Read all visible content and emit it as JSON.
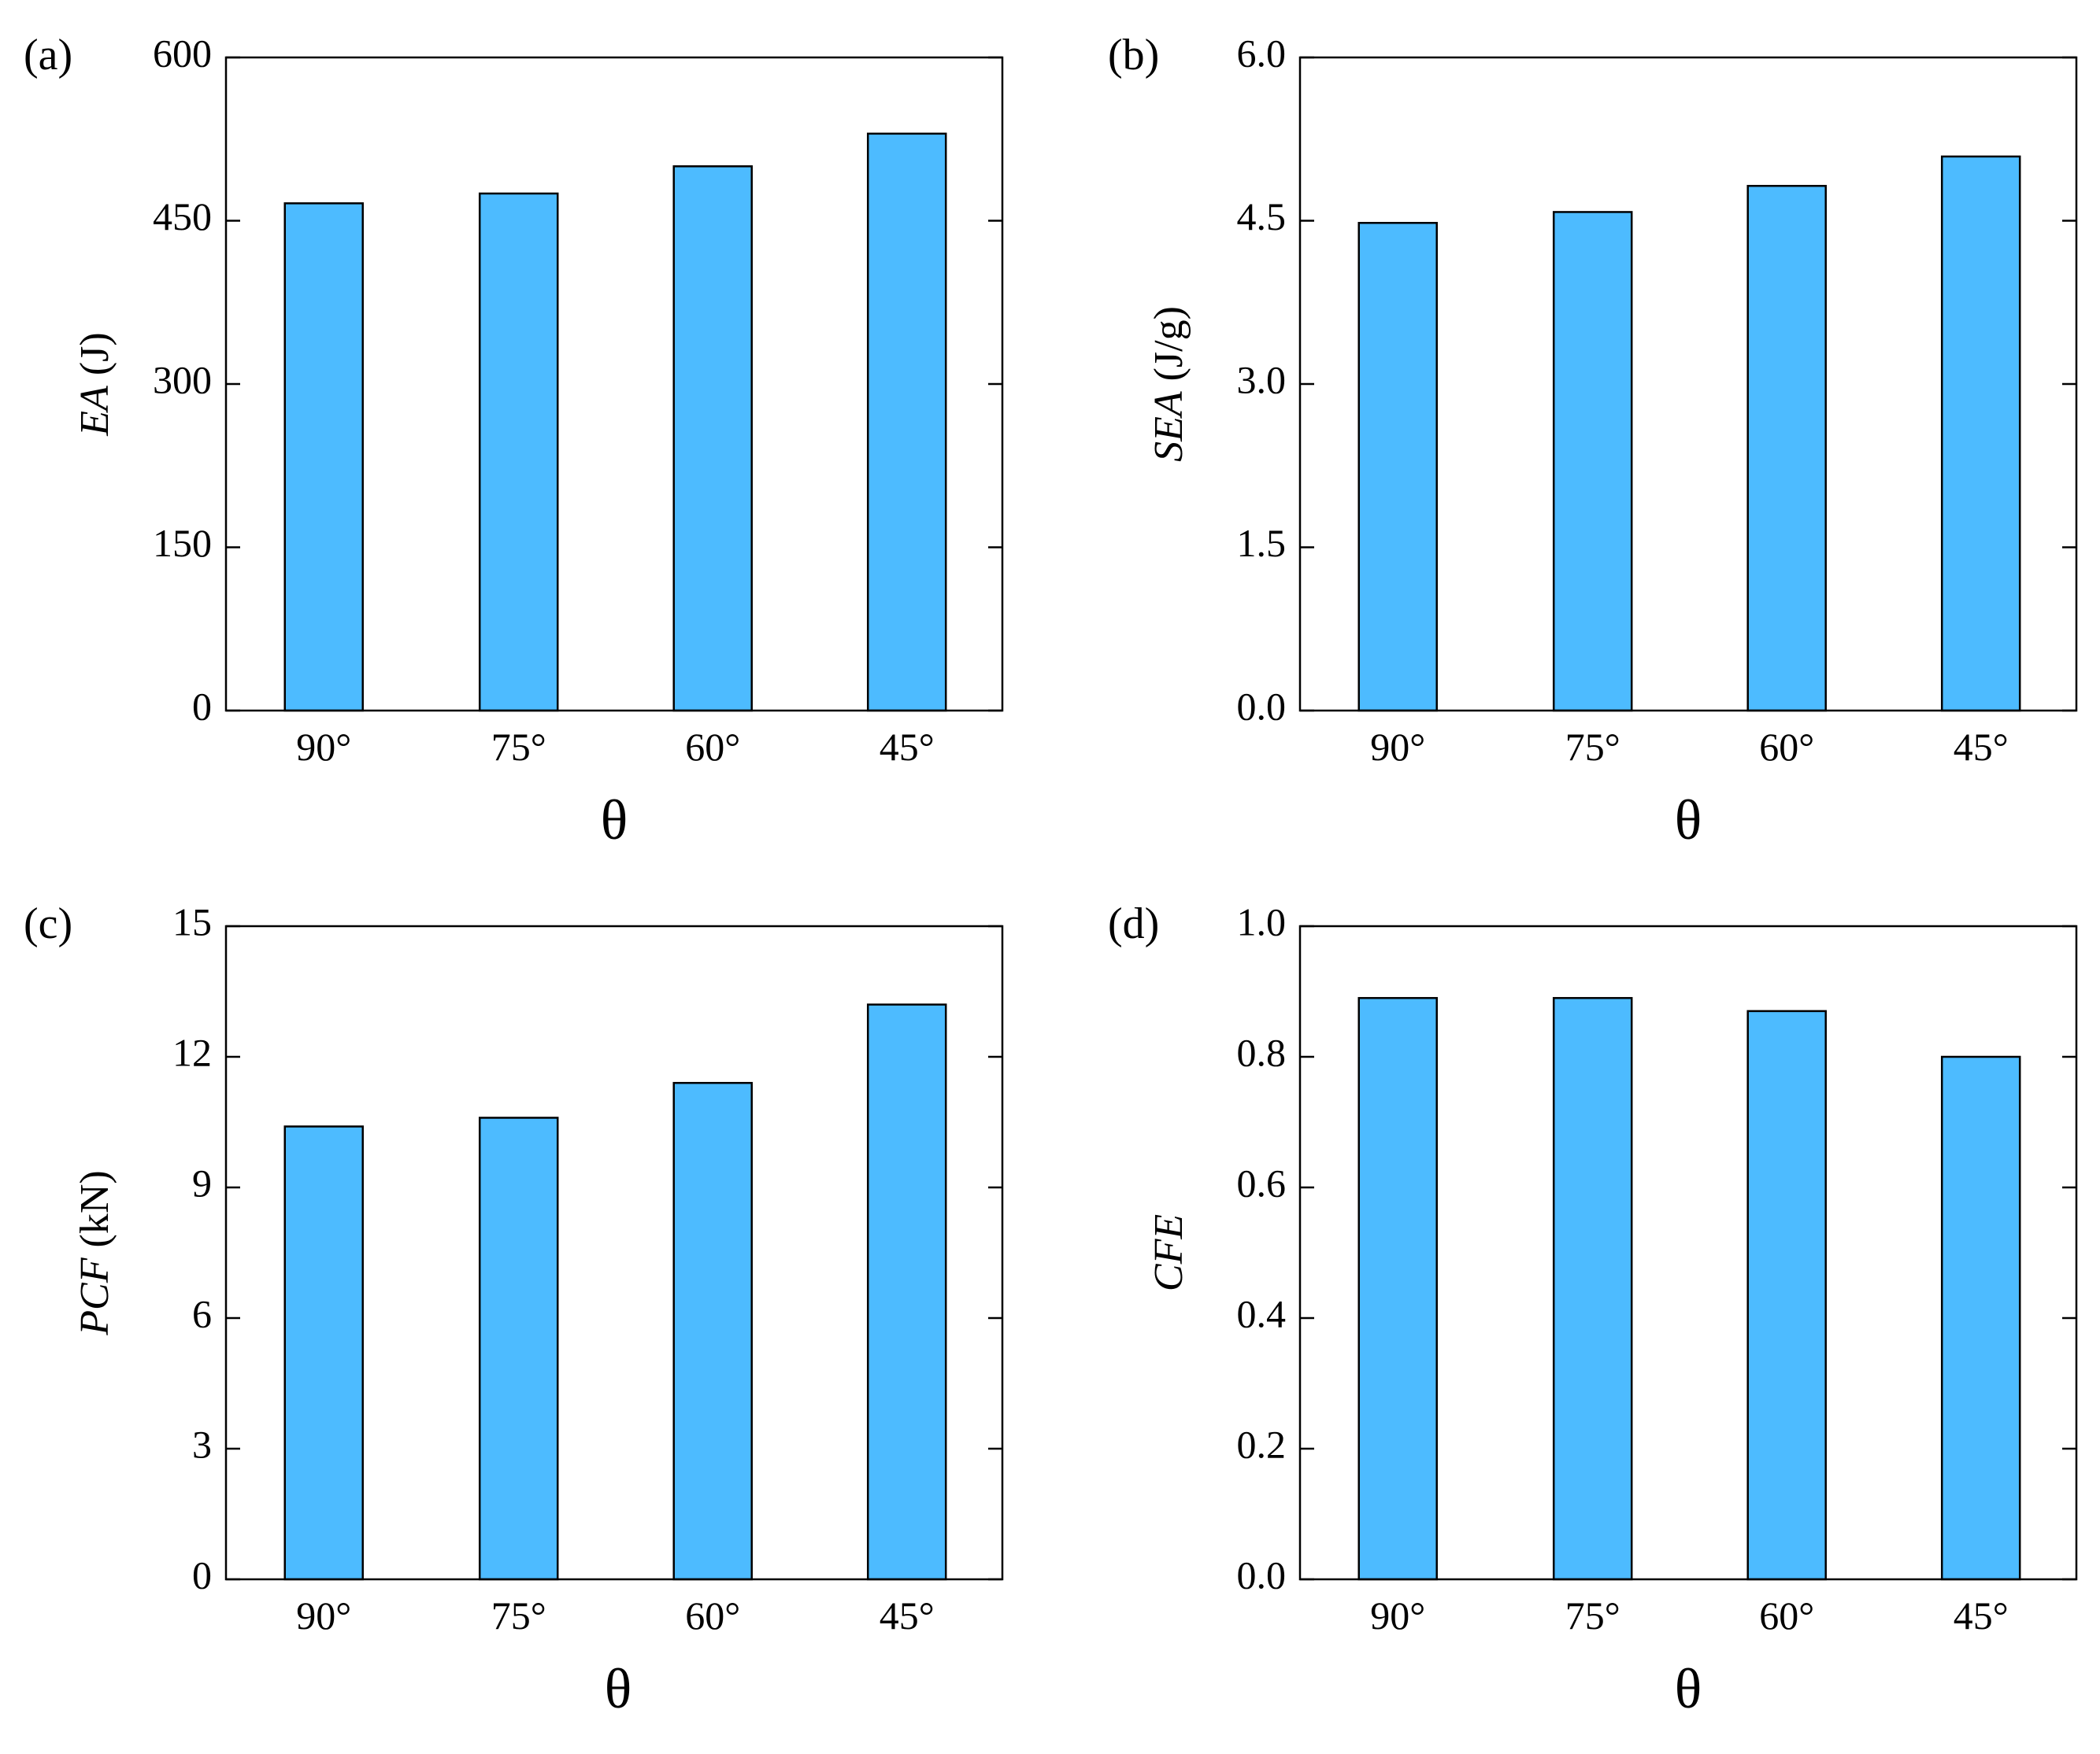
{
  "chart_data": [
    {
      "panel_label": "(a)",
      "type": "bar",
      "categories": [
        "90°",
        "75°",
        "60°",
        "45°"
      ],
      "values": [
        466,
        475,
        500,
        530
      ],
      "xlabel": "θ",
      "ylabel": "EA (J)",
      "ylabel_parts": [
        {
          "text": "EA",
          "italic": true
        },
        {
          "text": " (J)",
          "italic": false
        }
      ],
      "ylim": [
        0,
        600
      ],
      "yticks": [
        0,
        150,
        300,
        450,
        600
      ],
      "ytick_labels": [
        "0",
        "150",
        "300",
        "450",
        "600"
      ],
      "bar_color": "#4dbbff",
      "grid": false
    },
    {
      "panel_label": "(b)",
      "type": "bar",
      "categories": [
        "90°",
        "75°",
        "60°",
        "45°"
      ],
      "values": [
        4.48,
        4.58,
        4.82,
        5.09
      ],
      "xlabel": "θ",
      "ylabel": "SEA (J/g)",
      "ylabel_parts": [
        {
          "text": "SEA",
          "italic": true
        },
        {
          "text": " (J/g)",
          "italic": false
        }
      ],
      "ylim": [
        0,
        6.0
      ],
      "yticks": [
        0,
        1.5,
        3.0,
        4.5,
        6.0
      ],
      "ytick_labels": [
        "0.0",
        "1.5",
        "3.0",
        "4.5",
        "6.0"
      ],
      "bar_color": "#4dbbff",
      "grid": false
    },
    {
      "panel_label": "(c)",
      "type": "bar",
      "categories": [
        "90°",
        "75°",
        "60°",
        "45°"
      ],
      "values": [
        10.4,
        10.6,
        11.4,
        13.2
      ],
      "xlabel": "θ",
      "ylabel": "PCF (kN)",
      "ylabel_parts": [
        {
          "text": "PCF",
          "italic": true
        },
        {
          "text": " (kN)",
          "italic": false
        }
      ],
      "ylim": [
        0,
        15
      ],
      "yticks": [
        0,
        3,
        6,
        9,
        12,
        15
      ],
      "ytick_labels": [
        "0",
        "3",
        "6",
        "9",
        "12",
        "15"
      ],
      "bar_color": "#4dbbff",
      "grid": false
    },
    {
      "panel_label": "(d)",
      "type": "bar",
      "categories": [
        "90°",
        "75°",
        "60°",
        "45°"
      ],
      "values": [
        0.89,
        0.89,
        0.87,
        0.8
      ],
      "xlabel": "θ",
      "ylabel": "CFE",
      "ylabel_parts": [
        {
          "text": "CFE",
          "italic": true
        }
      ],
      "ylim": [
        0,
        1.0
      ],
      "yticks": [
        0,
        0.2,
        0.4,
        0.6,
        0.8,
        1.0
      ],
      "ytick_labels": [
        "0.0",
        "0.2",
        "0.4",
        "0.6",
        "0.8",
        "1.0"
      ],
      "bar_color": "#4dbbff",
      "grid": false
    }
  ]
}
